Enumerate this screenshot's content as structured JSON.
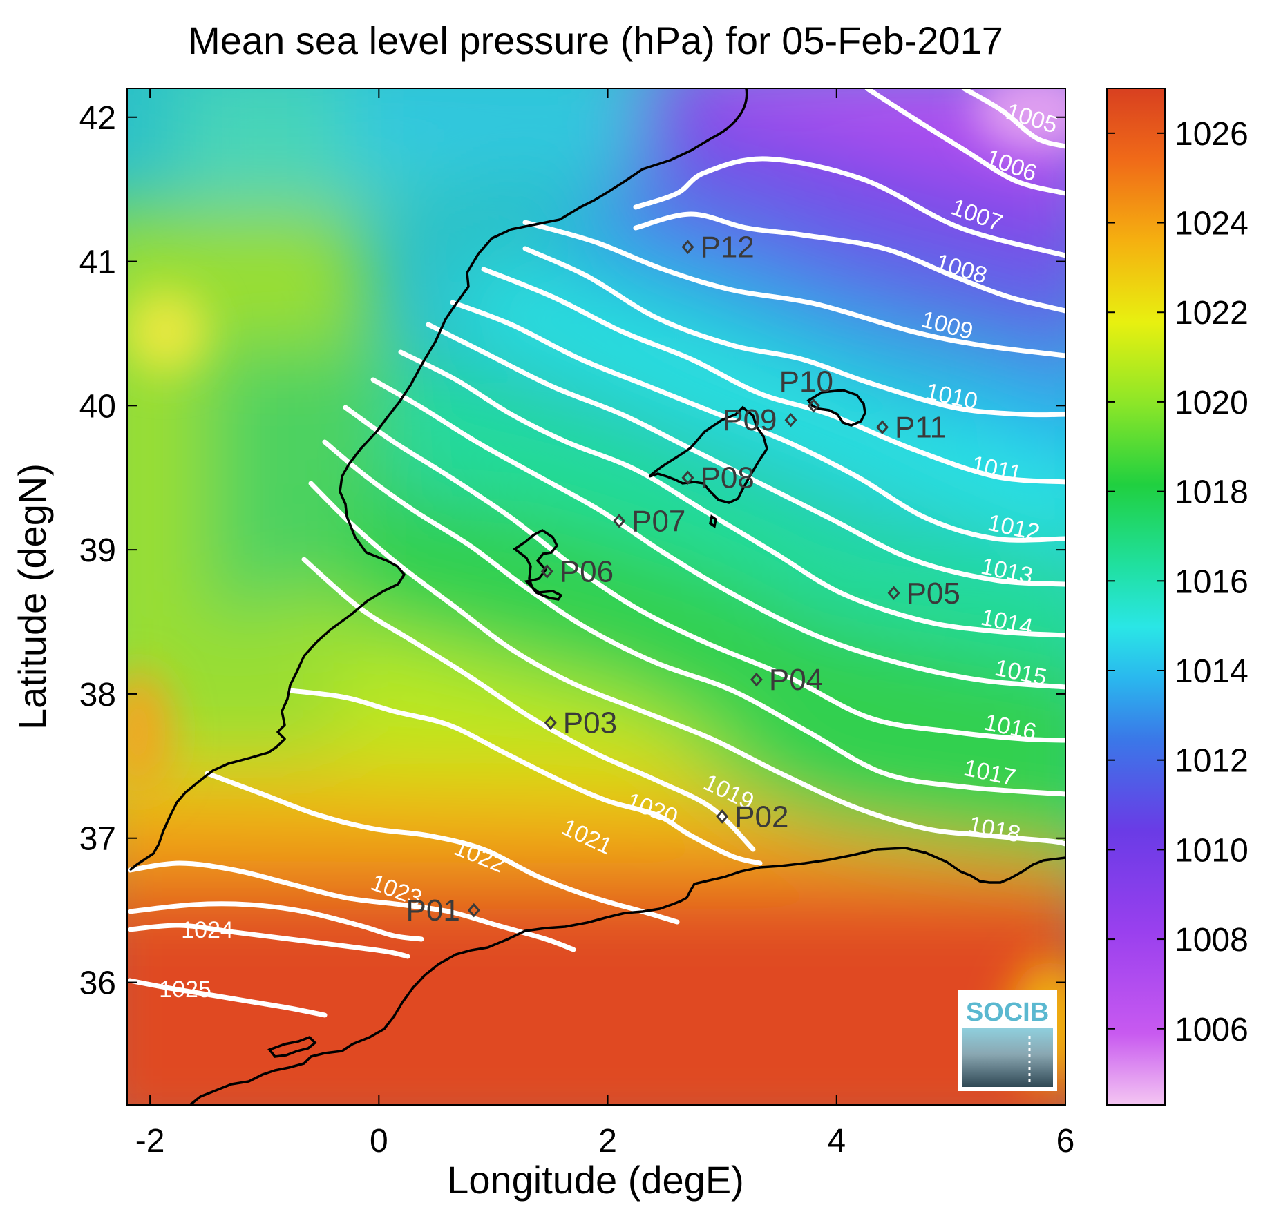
{
  "title": "Mean sea level pressure (hPa) for 05-Feb-2017",
  "xlabel": "Longitude (degE)",
  "ylabel": "Latitude (degN)",
  "map": {
    "lon_range": [
      -2.2,
      6.0
    ],
    "lat_range": [
      35.15,
      42.2
    ],
    "x_ticks": [
      -2,
      0,
      2,
      4,
      6
    ],
    "y_ticks": [
      36,
      37,
      38,
      39,
      40,
      41,
      42
    ],
    "colorbar": {
      "range": [
        1004.3,
        1027
      ],
      "ticks": [
        1006,
        1008,
        1010,
        1012,
        1014,
        1016,
        1018,
        1020,
        1022,
        1024,
        1026
      ],
      "colors": [
        "#f4c6f2",
        "#b53bf0",
        "#6a3be6",
        "#3a78e8",
        "#2ae6e6",
        "#20d060",
        "#a8ee20",
        "#f2f20a",
        "#f5a010",
        "#f05a18",
        "#d84020"
      ]
    },
    "isobars": [
      {
        "value": 1005,
        "label": "1005"
      },
      {
        "value": 1006,
        "label": "1006"
      },
      {
        "value": 1007,
        "label": "1007"
      },
      {
        "value": 1008,
        "label": "1008"
      },
      {
        "value": 1009,
        "label": "1009"
      },
      {
        "value": 1010,
        "label": "1010"
      },
      {
        "value": 1011,
        "label": "1011"
      },
      {
        "value": 1012,
        "label": "1012"
      },
      {
        "value": 1013,
        "label": "1013"
      },
      {
        "value": 1014,
        "label": "1014"
      },
      {
        "value": 1015,
        "label": "1015"
      },
      {
        "value": 1016,
        "label": "1016"
      },
      {
        "value": 1017,
        "label": "1017"
      },
      {
        "value": 1018,
        "label": "1018"
      },
      {
        "value": 1019,
        "label": "1019"
      },
      {
        "value": 1020,
        "label": "1020"
      },
      {
        "value": 1021,
        "label": "1021"
      },
      {
        "value": 1022,
        "label": "1022"
      },
      {
        "value": 1023,
        "label": "1023"
      },
      {
        "value": 1024,
        "label": "1024"
      },
      {
        "value": 1025,
        "label": "1025"
      }
    ],
    "stations": [
      {
        "id": "P01",
        "lon": 0.83,
        "lat": 36.5
      },
      {
        "id": "P02",
        "lon": 3.0,
        "lat": 37.15
      },
      {
        "id": "P03",
        "lon": 1.5,
        "lat": 37.8
      },
      {
        "id": "P04",
        "lon": 3.3,
        "lat": 38.1
      },
      {
        "id": "P05",
        "lon": 4.5,
        "lat": 38.7
      },
      {
        "id": "P06",
        "lon": 1.47,
        "lat": 38.85
      },
      {
        "id": "P07",
        "lon": 2.1,
        "lat": 39.2
      },
      {
        "id": "P08",
        "lon": 2.7,
        "lat": 39.5
      },
      {
        "id": "P09",
        "lon": 3.6,
        "lat": 39.9
      },
      {
        "id": "P10",
        "lon": 3.8,
        "lat": 40.0
      },
      {
        "id": "P11",
        "lon": 4.4,
        "lat": 39.85
      },
      {
        "id": "P12",
        "lon": 2.7,
        "lat": 41.1
      }
    ]
  },
  "logo": {
    "text": "SOCIB",
    "color": "#5ab8d0"
  }
}
